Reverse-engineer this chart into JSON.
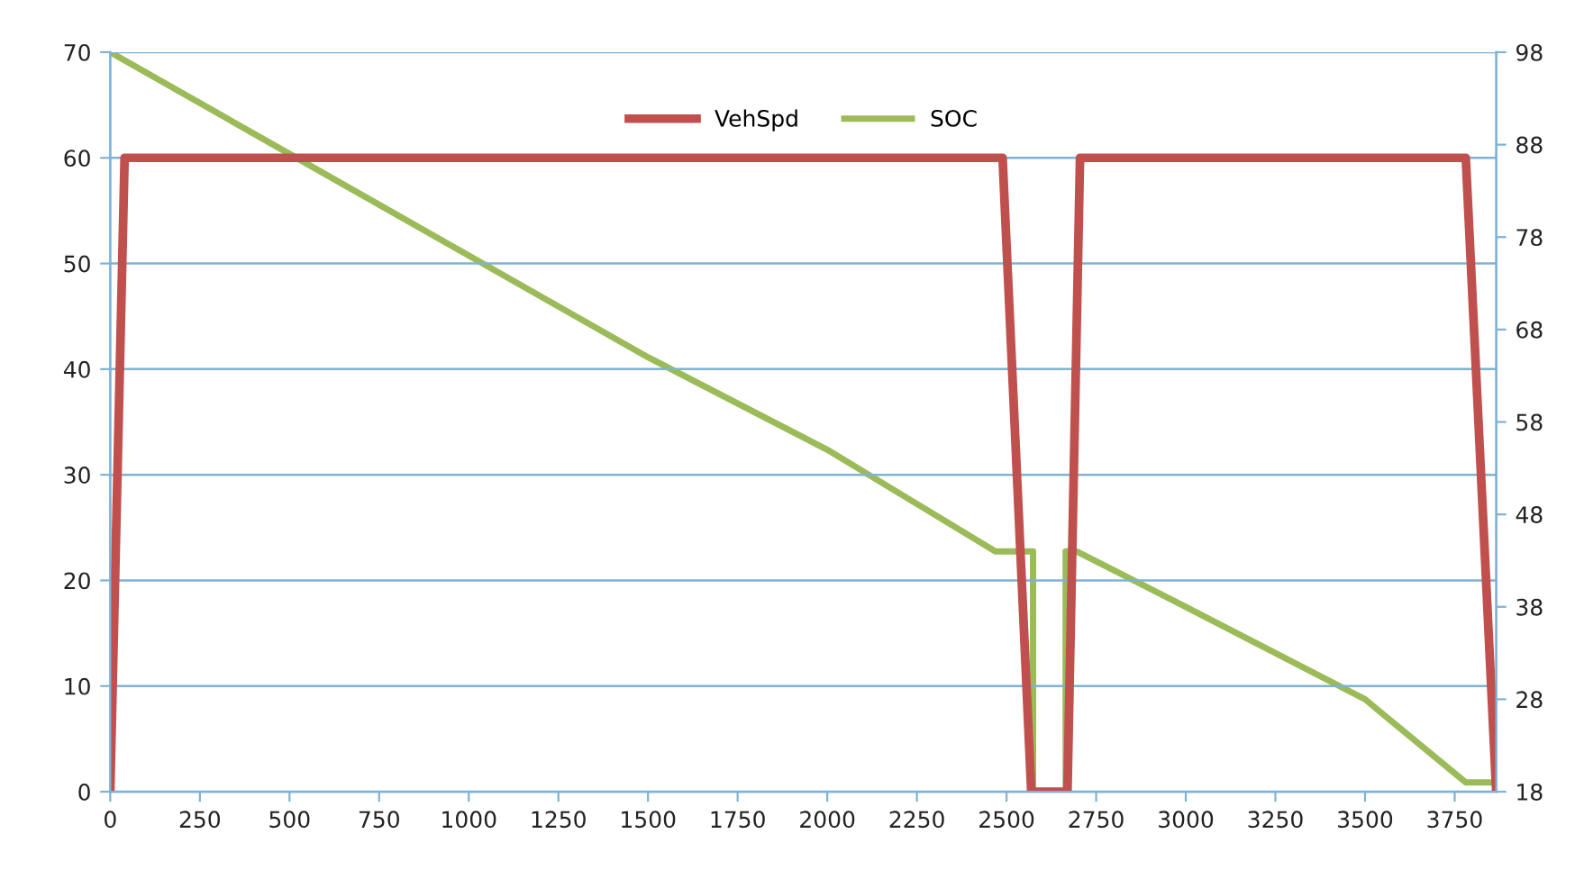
{
  "chart_data": {
    "type": "line",
    "series": [
      {
        "name": "VehSpd",
        "color": "#c0504d",
        "x": [
          0,
          40,
          2489,
          2569,
          2670,
          2705,
          3781,
          3866
        ],
        "values": [
          0,
          60,
          60,
          0,
          0,
          60,
          60,
          0
        ]
      },
      {
        "name": "SOC",
        "color": "#9bbb59",
        "axis": "y2",
        "x": [
          0,
          500,
          1000,
          1500,
          2000,
          2469,
          2574,
          2574,
          2665,
          2665,
          2695,
          3000,
          3500,
          3781,
          3866
        ],
        "values": [
          98,
          87,
          76,
          65,
          55,
          44,
          44,
          18,
          18,
          44,
          44,
          38,
          28,
          19,
          19
        ]
      }
    ],
    "xlim": [
      0,
      3866
    ],
    "xticks": [
      0,
      250,
      500,
      750,
      1000,
      1250,
      1500,
      1750,
      2000,
      2250,
      2500,
      2750,
      3000,
      3250,
      3500,
      3750
    ],
    "ylim": [
      0,
      70
    ],
    "yticks": [
      0,
      10,
      20,
      30,
      40,
      50,
      60,
      70
    ],
    "y2lim": [
      18,
      98
    ],
    "y2ticks": [
      18,
      28,
      38,
      48,
      58,
      68,
      78,
      88,
      98
    ],
    "grid": "y",
    "legend": "top",
    "marker": "none",
    "line_style": "solid"
  }
}
